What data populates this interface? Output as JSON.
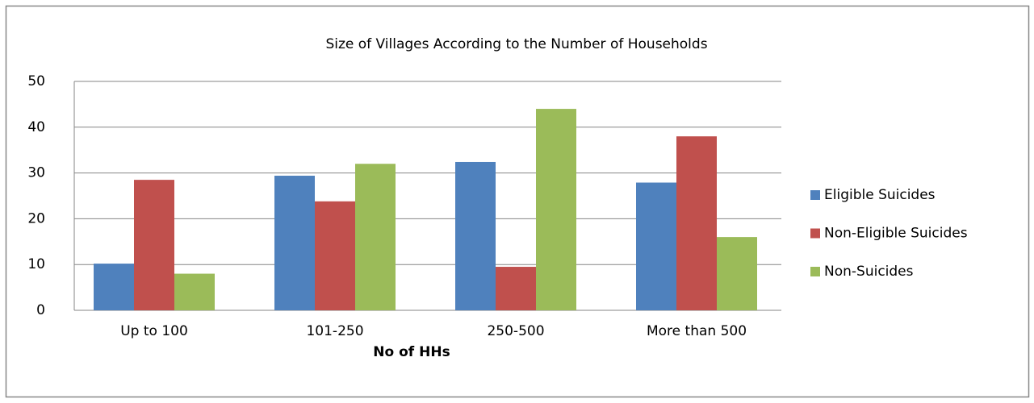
{
  "chart_data": {
    "type": "bar",
    "title": "Size of Villages According to the Number of Households",
    "x_label": "No of HHs",
    "categories": [
      "Up to 100",
      "101-250",
      "250-500",
      "More than 500"
    ],
    "series": [
      {
        "name": "Eligible Suicides",
        "color": "#4f81bd",
        "values": [
          10.2,
          29.4,
          32.4,
          27.9
        ]
      },
      {
        "name": "Non-Eligible Suicides",
        "color": "#c0504d",
        "values": [
          28.5,
          23.8,
          9.5,
          38
        ]
      },
      {
        "name": "Non-Suicides",
        "color": "#9bbb59",
        "values": [
          8,
          32,
          44,
          16
        ]
      }
    ],
    "ylim": [
      0,
      50
    ],
    "yticks": [
      0,
      10,
      20,
      30,
      40,
      50
    ],
    "grid": true,
    "legend": "right"
  }
}
